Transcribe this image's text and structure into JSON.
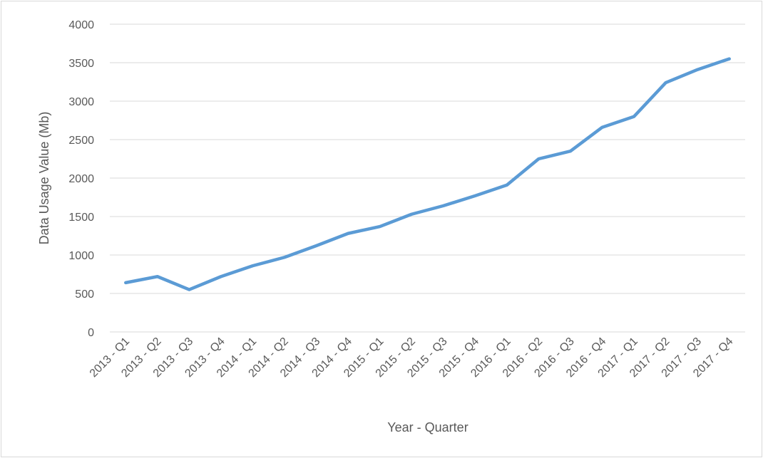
{
  "chart_data": {
    "type": "line",
    "x_label": "Year - Quarter",
    "y_label": "Data Usage Value (Mb)",
    "categories": [
      "2013 - Q1",
      "2013 - Q2",
      "2013 - Q3",
      "2013 - Q4",
      "2014 - Q1",
      "2014 - Q2",
      "2014 - Q3",
      "2014 - Q4",
      "2015 - Q1",
      "2015 - Q2",
      "2015 - Q3",
      "2015 - Q4",
      "2016 - Q1",
      "2016 - Q2",
      "2016 - Q3",
      "2016 - Q4",
      "2017 - Q1",
      "2017 - Q2",
      "2017 - Q3",
      "2017 - Q4"
    ],
    "series": [
      {
        "color": "#5b9bd5",
        "values": [
          640,
          720,
          550,
          720,
          860,
          970,
          1120,
          1280,
          1370,
          1530,
          1640,
          1770,
          1910,
          2250,
          2350,
          2660,
          2800,
          3240,
          3410,
          3550
        ]
      }
    ],
    "ylim": [
      0,
      4000
    ],
    "yticks": [
      0,
      500,
      1000,
      1500,
      2000,
      2500,
      3000,
      3500,
      4000
    ],
    "grid": true
  }
}
